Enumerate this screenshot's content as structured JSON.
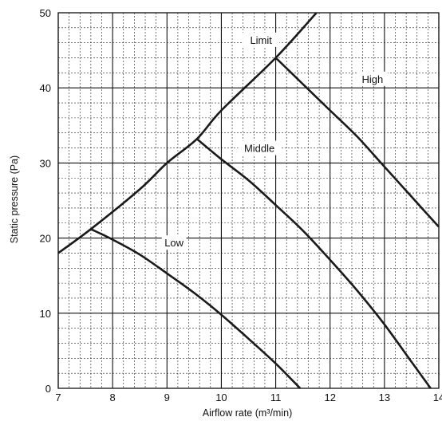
{
  "chart_data": {
    "type": "line",
    "xlabel": "Airflow rate (m³/min)",
    "ylabel": "Static pressure (Pa)",
    "xlim": [
      7,
      14
    ],
    "ylim": [
      0,
      50
    ],
    "x_ticks": [
      "7",
      "8",
      "9",
      "10",
      "11",
      "12",
      "13",
      "14"
    ],
    "y_ticks": [
      "0",
      "10",
      "20",
      "30",
      "40",
      "50"
    ],
    "grid": true,
    "series": [
      {
        "name": "Limit",
        "x": [
          7.0,
          7.6,
          8.5,
          9.0,
          9.55,
          10.0,
          11.0,
          11.75
        ],
        "y": [
          18.0,
          21.2,
          26.5,
          30.0,
          33.2,
          37.0,
          44.0,
          50.0
        ]
      },
      {
        "name": "High",
        "x": [
          11.0,
          11.5,
          12.0,
          12.5,
          13.0,
          13.5,
          14.0
        ],
        "y": [
          44.0,
          40.5,
          37.0,
          33.5,
          29.5,
          25.5,
          21.5
        ]
      },
      {
        "name": "Middle",
        "x": [
          9.55,
          10.0,
          10.5,
          11.0,
          11.5,
          12.0,
          12.5,
          13.0,
          13.5,
          13.85
        ],
        "y": [
          33.2,
          30.5,
          27.7,
          24.4,
          21.0,
          17.1,
          13.0,
          8.5,
          3.5,
          0.0
        ]
      },
      {
        "name": "Low",
        "x": [
          7.6,
          8.0,
          8.5,
          9.0,
          9.5,
          10.0,
          10.5,
          11.0,
          11.45
        ],
        "y": [
          21.2,
          19.8,
          17.8,
          15.3,
          12.7,
          9.8,
          6.6,
          3.3,
          0.0
        ]
      }
    ],
    "annotations": [
      "Limit",
      "High",
      "Middle",
      "Low"
    ]
  }
}
